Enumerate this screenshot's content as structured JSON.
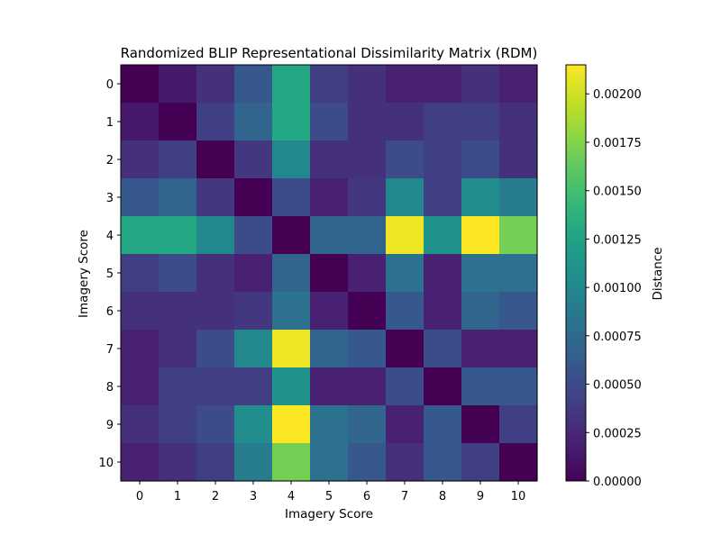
{
  "chart_data": {
    "type": "heatmap",
    "title": "Randomized BLIP Representational Dissimilarity Matrix (RDM)",
    "xlabel": "Imagery Score",
    "ylabel": "Imagery Score",
    "x_categories": [
      "0",
      "1",
      "2",
      "3",
      "4",
      "5",
      "6",
      "7",
      "8",
      "9",
      "10"
    ],
    "y_categories": [
      "0",
      "1",
      "2",
      "3",
      "4",
      "5",
      "6",
      "7",
      "8",
      "9",
      "10"
    ],
    "colormap": "viridis",
    "colorbar": {
      "label": "Distance",
      "vmin": 0.0,
      "vmax": 0.00215,
      "ticks": [
        0.0,
        0.00025,
        0.0005,
        0.00075,
        0.001,
        0.00125,
        0.0015,
        0.00175,
        0.002
      ],
      "tick_labels": [
        "0.00000",
        "0.00025",
        "0.00050",
        "0.00075",
        "0.00100",
        "0.00125",
        "0.00150",
        "0.00175",
        "0.00200"
      ]
    },
    "values": [
      [
        0.0,
        0.00015,
        0.0003,
        0.0006,
        0.0013,
        0.0004,
        0.0003,
        0.0002,
        0.0002,
        0.0003,
        0.0002
      ],
      [
        0.00015,
        0.0,
        0.0004,
        0.0007,
        0.0013,
        0.0005,
        0.0003,
        0.0003,
        0.0004,
        0.0004,
        0.0003
      ],
      [
        0.0003,
        0.0004,
        0.0,
        0.00035,
        0.001,
        0.0003,
        0.0003,
        0.0005,
        0.0004,
        0.0005,
        0.0003
      ],
      [
        0.0006,
        0.0007,
        0.00035,
        0.0,
        0.0005,
        0.0002,
        0.00035,
        0.001,
        0.0004,
        0.00105,
        0.0009
      ],
      [
        0.0013,
        0.0013,
        0.001,
        0.0005,
        0.0,
        0.0007,
        0.0007,
        0.0021,
        0.0011,
        0.00215,
        0.0017
      ],
      [
        0.0004,
        0.0005,
        0.0003,
        0.0002,
        0.0007,
        0.0,
        0.0002,
        0.0008,
        0.0002,
        0.0008,
        0.0008
      ],
      [
        0.0003,
        0.0003,
        0.0003,
        0.00035,
        0.0008,
        0.0002,
        0.0,
        0.0006,
        0.0002,
        0.0007,
        0.0006
      ],
      [
        0.0002,
        0.0003,
        0.0005,
        0.001,
        0.0021,
        0.0007,
        0.0006,
        0.0,
        0.0005,
        0.0002,
        0.0002
      ],
      [
        0.0002,
        0.0004,
        0.0004,
        0.0004,
        0.0011,
        0.0002,
        0.0002,
        0.0005,
        0.0,
        0.0006,
        0.0006
      ],
      [
        0.0003,
        0.0004,
        0.0005,
        0.00105,
        0.00215,
        0.0008,
        0.0007,
        0.0002,
        0.0006,
        0.0,
        0.0004
      ],
      [
        0.0002,
        0.0003,
        0.0004,
        0.0009,
        0.0017,
        0.0008,
        0.0006,
        0.0003,
        0.0006,
        0.0004,
        0.0
      ]
    ]
  }
}
